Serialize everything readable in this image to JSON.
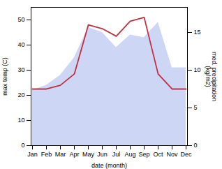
{
  "chart_data": {
    "type": "area",
    "xlabel": "date (month)",
    "ylabel": "max temp (C)",
    "y2label": "med. precipitation\n(kg/m2)",
    "categories": [
      "Jan",
      "Feb",
      "Mar",
      "Apr",
      "May",
      "Jun",
      "Jul",
      "Aug",
      "Sep",
      "Oct",
      "Nov",
      "Dec"
    ],
    "series": [
      {
        "type": "area",
        "color": "#b8c4f0",
        "values": [
          22,
          24,
          28,
          35,
          47,
          45,
          39,
          44,
          43,
          49,
          31,
          31
        ]
      },
      {
        "type": "line",
        "color": "#c03040",
        "axis": "y2",
        "values": [
          7.5,
          7.5,
          8.0,
          9.5,
          16.0,
          15.5,
          14.5,
          16.5,
          17.0,
          9.5,
          7.5,
          7.5
        ]
      }
    ],
    "ylim": [
      0,
      55
    ],
    "yticks": [
      0,
      10,
      20,
      30,
      40,
      50
    ],
    "y2lim": [
      0,
      18.33
    ],
    "y2ticks": [
      0,
      5,
      10,
      15
    ]
  }
}
